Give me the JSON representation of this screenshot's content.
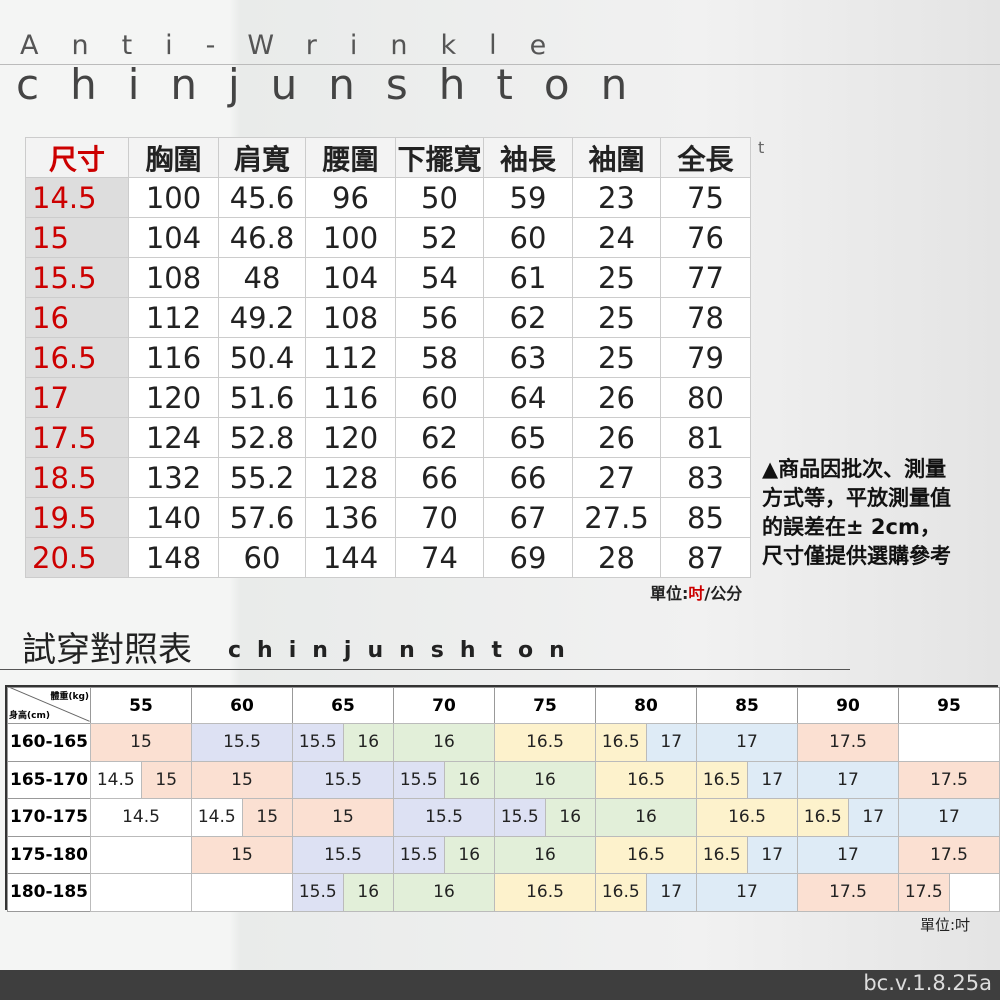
{
  "header": {
    "subtitle": "Anti-Wrinkle",
    "brand": "chinjunshton"
  },
  "size_table": {
    "headers": [
      "尺寸",
      "胸圍",
      "肩寬",
      "腰圍",
      "下擺寬",
      "袖長",
      "袖圍",
      "全長"
    ],
    "rows": [
      [
        "14.5",
        "100",
        "45.6",
        "96",
        "50",
        "59",
        "23",
        "75"
      ],
      [
        "15",
        "104",
        "46.8",
        "100",
        "52",
        "60",
        "24",
        "76"
      ],
      [
        "15.5",
        "108",
        "48",
        "104",
        "54",
        "61",
        "25",
        "77"
      ],
      [
        "16",
        "112",
        "49.2",
        "108",
        "56",
        "62",
        "25",
        "78"
      ],
      [
        "16.5",
        "116",
        "50.4",
        "112",
        "58",
        "63",
        "25",
        "79"
      ],
      [
        "17",
        "120",
        "51.6",
        "116",
        "60",
        "64",
        "26",
        "80"
      ],
      [
        "17.5",
        "124",
        "52.8",
        "120",
        "62",
        "65",
        "26",
        "81"
      ],
      [
        "18.5",
        "132",
        "55.2",
        "128",
        "66",
        "66",
        "27",
        "83"
      ],
      [
        "19.5",
        "140",
        "57.6",
        "136",
        "70",
        "67",
        "27.5",
        "85"
      ],
      [
        "20.5",
        "148",
        "60",
        "144",
        "74",
        "69",
        "28",
        "87"
      ]
    ],
    "mark": "t",
    "unit": {
      "prefix": "單位:",
      "highlight": "吋",
      "suffix": "/公分"
    }
  },
  "note": {
    "lines": [
      "▲商品因批次、測量",
      "方式等，平放測量值",
      "的誤差在± 2cm，",
      "尺寸僅提供選購參考"
    ]
  },
  "fitting_table": {
    "title": "試穿對照表",
    "brand": "chinjunshton",
    "weight_label": "體重(kg)",
    "height_label": "身高(cm)",
    "weights": [
      "55",
      "60",
      "65",
      "70",
      "75",
      "80",
      "85",
      "90",
      "95"
    ],
    "rows": [
      {
        "height": "160-165",
        "cells": [
          {
            "text": "15",
            "color": "#fbe0d2"
          },
          {
            "text": "15.5",
            "color": "#dde1f3"
          },
          [
            {
              "text": "15.5",
              "color": "#dde1f3"
            },
            {
              "text": "16",
              "color": "#e2efd9"
            }
          ],
          {
            "text": "16",
            "color": "#e2efd9"
          },
          {
            "text": "16.5",
            "color": "#fdf2cc"
          },
          [
            {
              "text": "16.5",
              "color": "#fdf2cc"
            },
            {
              "text": "17",
              "color": "#deebf6"
            }
          ],
          {
            "text": "17",
            "color": "#deebf6"
          },
          {
            "text": "17.5",
            "color": "#fbe0d2"
          },
          {
            "color": "#ffffff"
          }
        ]
      },
      {
        "height": "165-170",
        "cells": [
          [
            {
              "text": "14.5",
              "color": "#ffffff"
            },
            {
              "text": "15",
              "color": "#fbe0d2"
            }
          ],
          {
            "text": "15",
            "color": "#fbe0d2"
          },
          {
            "text": "15.5",
            "color": "#dde1f3"
          },
          [
            {
              "text": "15.5",
              "color": "#dde1f3"
            },
            {
              "text": "16",
              "color": "#e2efd9"
            }
          ],
          {
            "text": "16",
            "color": "#e2efd9"
          },
          {
            "text": "16.5",
            "color": "#fdf2cc"
          },
          [
            {
              "text": "16.5",
              "color": "#fdf2cc"
            },
            {
              "text": "17",
              "color": "#deebf6"
            }
          ],
          {
            "text": "17",
            "color": "#deebf6"
          },
          {
            "text": "17.5",
            "color": "#fbe0d2"
          }
        ]
      },
      {
        "height": "170-175",
        "cells": [
          {
            "text": "14.5",
            "color": "#ffffff"
          },
          [
            {
              "text": "14.5",
              "color": "#ffffff"
            },
            {
              "text": "15",
              "color": "#fbe0d2"
            }
          ],
          {
            "text": "15",
            "color": "#fbe0d2"
          },
          {
            "text": "15.5",
            "color": "#dde1f3"
          },
          [
            {
              "text": "15.5",
              "color": "#dde1f3"
            },
            {
              "text": "16",
              "color": "#e2efd9"
            }
          ],
          {
            "text": "16",
            "color": "#e2efd9"
          },
          {
            "text": "16.5",
            "color": "#fdf2cc"
          },
          [
            {
              "text": "16.5",
              "color": "#fdf2cc"
            },
            {
              "text": "17",
              "color": "#deebf6"
            }
          ],
          {
            "text": "17",
            "color": "#deebf6"
          }
        ]
      },
      {
        "height": "175-180",
        "cells": [
          {
            "color": "#ffffff"
          },
          {
            "text": "15",
            "color": "#fbe0d2"
          },
          {
            "text": "15.5",
            "color": "#dde1f3"
          },
          [
            {
              "text": "15.5",
              "color": "#dde1f3"
            },
            {
              "text": "16",
              "color": "#e2efd9"
            }
          ],
          {
            "text": "16",
            "color": "#e2efd9"
          },
          {
            "text": "16.5",
            "color": "#fdf2cc"
          },
          [
            {
              "text": "16.5",
              "color": "#fdf2cc"
            },
            {
              "text": "17",
              "color": "#deebf6"
            }
          ],
          {
            "text": "17",
            "color": "#deebf6"
          },
          {
            "text": "17.5",
            "color": "#fbe0d2"
          }
        ]
      },
      {
        "height": "180-185",
        "cells": [
          {
            "color": "#ffffff"
          },
          {
            "color": "#ffffff"
          },
          [
            {
              "text": "15.5",
              "color": "#dde1f3"
            },
            {
              "text": "16",
              "color": "#e2efd9"
            }
          ],
          {
            "text": "16",
            "color": "#e2efd9"
          },
          {
            "text": "16.5",
            "color": "#fdf2cc"
          },
          [
            {
              "text": "16.5",
              "color": "#fdf2cc"
            },
            {
              "text": "17",
              "color": "#deebf6"
            }
          ],
          {
            "text": "17",
            "color": "#deebf6"
          },
          {
            "text": "17.5",
            "color": "#fbe0d2"
          },
          [
            {
              "text": "17.5",
              "color": "#fbe0d2"
            },
            {
              "color": "#ffffff"
            }
          ]
        ]
      }
    ],
    "unit": "單位:吋"
  },
  "footer": {
    "version": "bc.v.1.8.25a"
  }
}
